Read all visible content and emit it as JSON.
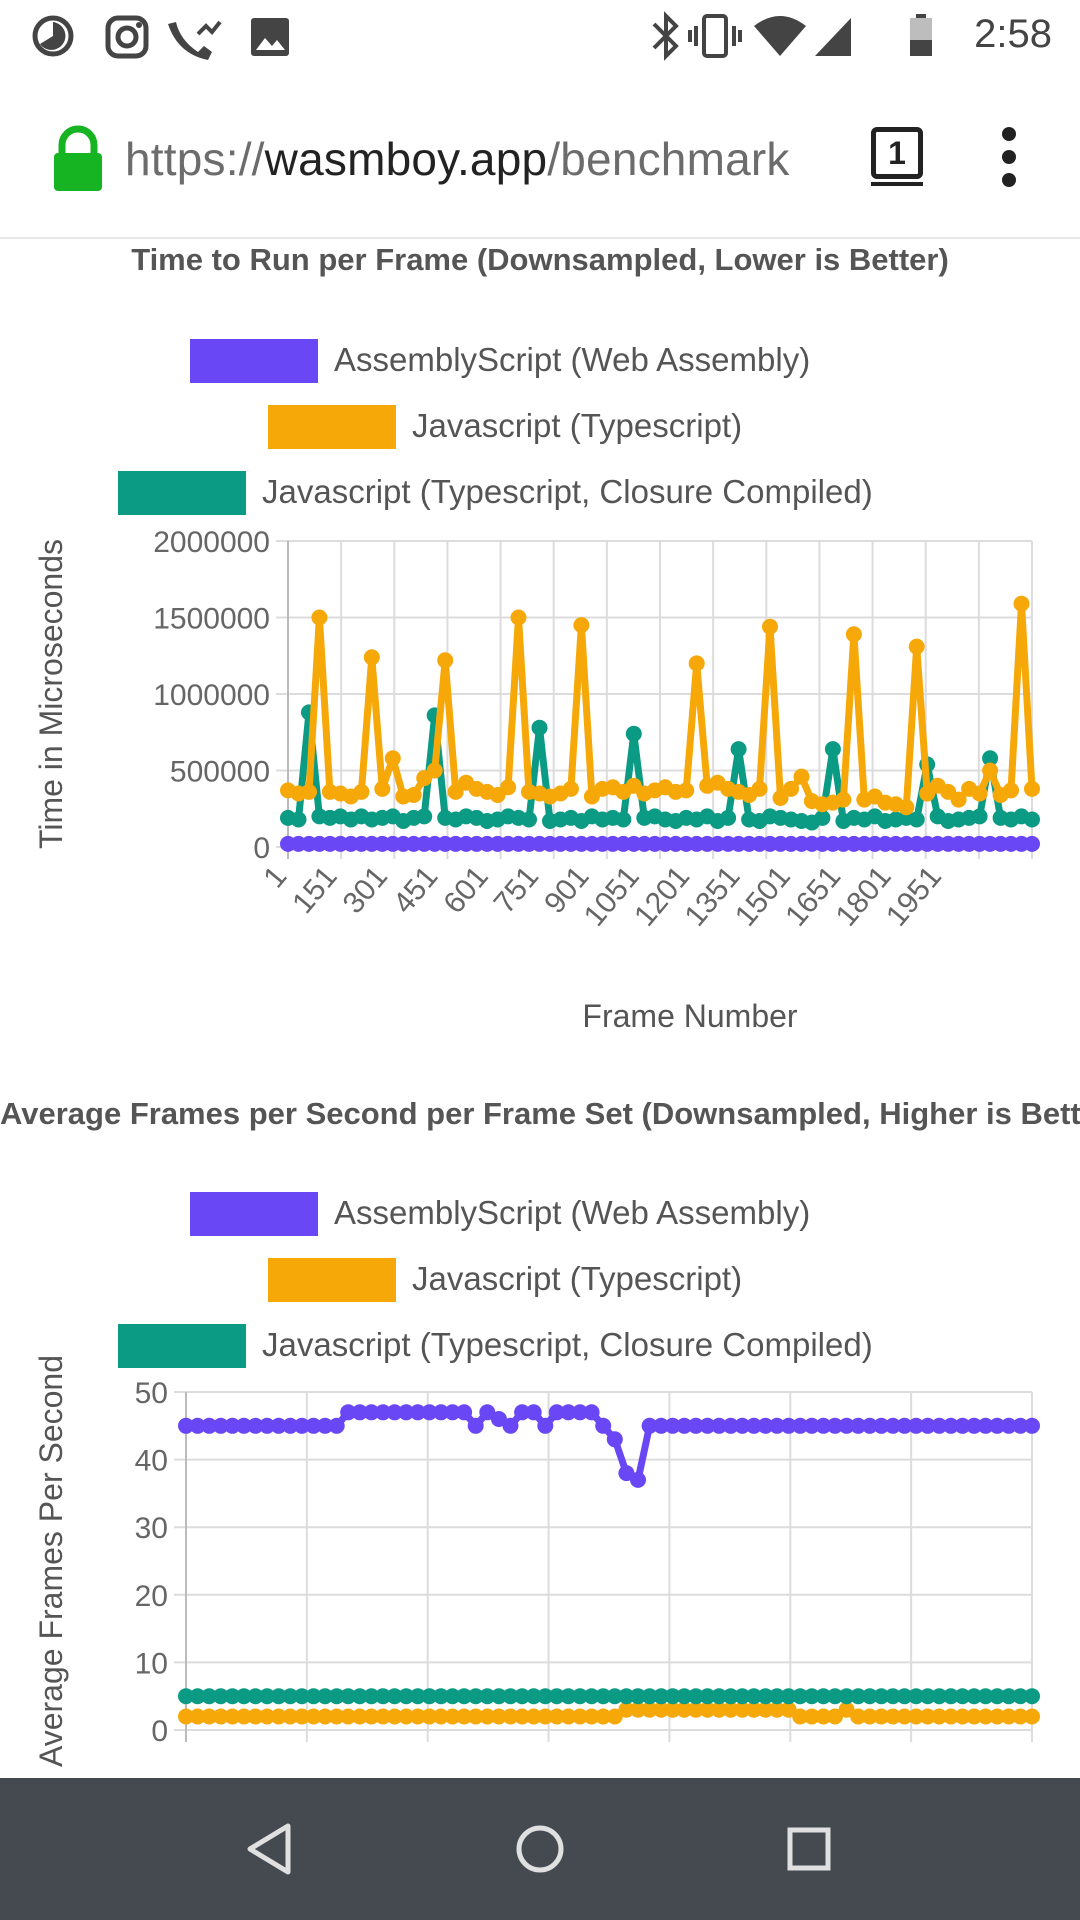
{
  "status_bar": {
    "time": "2:58",
    "left_icons": [
      "data-saver-icon",
      "instagram-icon",
      "missed-call-icon",
      "gallery-icon"
    ],
    "right_icons": [
      "bluetooth-icon",
      "vibrate-icon",
      "wifi-icon",
      "signal-icon",
      "battery-icon"
    ]
  },
  "browser": {
    "url_scheme": "https://",
    "url_host": "wasmboy.app",
    "url_path": "/benchmark",
    "tab_count": "1",
    "secure_icon": "lock-icon",
    "menu_icon": "more-vert-icon"
  },
  "colors": {
    "assemblyscript": "#6a47f5",
    "typescript": "#f6a809",
    "closure": "#0b9a84",
    "grid": "#dcdcdc"
  },
  "chart_data": [
    {
      "type": "line",
      "title": "Time to Run per Frame (Downsampled, Lower is Better)",
      "xlabel": "Frame Number",
      "ylabel": "Time in Microseconds",
      "ylim": [
        0,
        2000000
      ],
      "yticks": [
        "2000000",
        "1500000",
        "1000000",
        "500000",
        "0"
      ],
      "xticks": [
        "1",
        "151",
        "301",
        "451",
        "601",
        "751",
        "901",
        "1051",
        "1201",
        "1351",
        "1501",
        "1651",
        "1801",
        "1951"
      ],
      "legend": [
        "AssemblyScript (Web Assembly)",
        "Javascript (Typescript)",
        "Javascript (Typescript, Closure Compiled)"
      ],
      "series": [
        {
          "name": "AssemblyScript (Web Assembly)",
          "values": [
            20000,
            20000,
            20000,
            20000,
            20000,
            20000,
            20000,
            20000,
            20000,
            20000,
            20000,
            20000,
            20000,
            20000,
            20000,
            20000,
            20000,
            20000,
            20000,
            20000,
            20000,
            20000,
            20000,
            20000,
            20000,
            20000,
            20000,
            20000,
            20000,
            20000,
            20000,
            20000,
            20000,
            20000,
            20000,
            20000,
            20000,
            20000,
            20000,
            20000,
            20000,
            20000,
            20000,
            20000,
            20000,
            20000,
            20000,
            20000,
            20000,
            20000,
            20000,
            20000,
            20000,
            20000,
            20000,
            20000,
            20000,
            20000,
            20000,
            20000,
            20000,
            20000,
            20000,
            20000,
            20000,
            20000,
            20000,
            20000,
            20000,
            20000,
            20000,
            20000
          ]
        },
        {
          "name": "Javascript (Typescript)",
          "values": [
            370000,
            350000,
            360000,
            1500000,
            360000,
            350000,
            330000,
            360000,
            1240000,
            380000,
            580000,
            330000,
            340000,
            450000,
            500000,
            1220000,
            360000,
            420000,
            380000,
            360000,
            340000,
            390000,
            1500000,
            360000,
            350000,
            330000,
            350000,
            380000,
            1450000,
            330000,
            380000,
            390000,
            360000,
            400000,
            350000,
            370000,
            390000,
            360000,
            370000,
            1200000,
            400000,
            420000,
            380000,
            360000,
            340000,
            380000,
            1440000,
            320000,
            380000,
            460000,
            300000,
            280000,
            290000,
            310000,
            1390000,
            310000,
            330000,
            290000,
            280000,
            260000,
            1310000,
            350000,
            400000,
            360000,
            310000,
            380000,
            350000,
            500000,
            340000,
            370000,
            1590000,
            380000
          ]
        },
        {
          "name": "Javascript (Typescript, Closure Compiled)",
          "values": [
            190000,
            180000,
            880000,
            200000,
            190000,
            200000,
            180000,
            200000,
            180000,
            190000,
            200000,
            170000,
            190000,
            200000,
            860000,
            190000,
            180000,
            200000,
            190000,
            170000,
            180000,
            200000,
            190000,
            180000,
            780000,
            170000,
            180000,
            190000,
            170000,
            200000,
            180000,
            190000,
            180000,
            740000,
            190000,
            200000,
            180000,
            170000,
            190000,
            180000,
            200000,
            170000,
            190000,
            640000,
            180000,
            170000,
            200000,
            190000,
            180000,
            170000,
            160000,
            190000,
            640000,
            170000,
            190000,
            180000,
            200000,
            170000,
            180000,
            190000,
            180000,
            540000,
            200000,
            170000,
            180000,
            190000,
            200000,
            580000,
            190000,
            180000,
            200000,
            180000
          ]
        }
      ]
    },
    {
      "type": "line",
      "title": "Average Frames per Second per Frame Set (Downsampled, Higher is Better)",
      "ylabel": "Average Frames Per Second",
      "ylim": [
        0,
        50
      ],
      "yticks": [
        "50",
        "40",
        "30",
        "20",
        "10",
        "0"
      ],
      "legend": [
        "AssemblyScript (Web Assembly)",
        "Javascript (Typescript)",
        "Javascript (Typescript, Closure Compiled)"
      ],
      "series": [
        {
          "name": "AssemblyScript (Web Assembly)",
          "values": [
            45,
            45,
            45,
            45,
            45,
            45,
            45,
            45,
            45,
            45,
            45,
            45,
            45,
            45,
            47,
            47,
            47,
            47,
            47,
            47,
            47,
            47,
            47,
            47,
            47,
            45,
            47,
            46,
            45,
            47,
            47,
            45,
            47,
            47,
            47,
            47,
            45,
            43,
            38,
            37,
            45,
            45,
            45,
            45,
            45,
            45,
            45,
            45,
            45,
            45,
            45,
            45,
            45,
            45,
            45,
            45,
            45,
            45,
            45,
            45,
            45,
            45,
            45,
            45,
            45,
            45,
            45,
            45,
            45,
            45,
            45,
            45,
            45,
            45
          ]
        },
        {
          "name": "Javascript (Typescript)",
          "values": [
            2,
            2,
            2,
            2,
            2,
            2,
            2,
            2,
            2,
            2,
            2,
            2,
            2,
            2,
            2,
            2,
            2,
            2,
            2,
            2,
            2,
            2,
            2,
            2,
            2,
            2,
            2,
            2,
            2,
            2,
            2,
            2,
            2,
            2,
            2,
            2,
            2,
            2,
            3,
            3,
            3,
            3,
            3,
            3,
            3,
            3,
            3,
            3,
            3,
            3,
            3,
            3,
            3,
            2,
            2,
            2,
            2,
            3,
            2,
            2,
            2,
            2,
            2,
            2,
            2,
            2,
            2,
            2,
            2,
            2,
            2,
            2,
            2,
            2
          ]
        },
        {
          "name": "Javascript (Typescript, Closure Compiled)",
          "values": [
            5,
            5,
            5,
            5,
            5,
            5,
            5,
            5,
            5,
            5,
            5,
            5,
            5,
            5,
            5,
            5,
            5,
            5,
            5,
            5,
            5,
            5,
            5,
            5,
            5,
            5,
            5,
            5,
            5,
            5,
            5,
            5,
            5,
            5,
            5,
            5,
            5,
            5,
            5,
            5,
            5,
            5,
            5,
            5,
            5,
            5,
            5,
            5,
            5,
            5,
            5,
            5,
            5,
            5,
            5,
            5,
            5,
            5,
            5,
            5,
            5,
            5,
            5,
            5,
            5,
            5,
            5,
            5,
            5,
            5,
            5,
            5,
            5,
            5
          ]
        }
      ]
    }
  ],
  "nav_bar": {
    "icons": [
      "back-icon",
      "home-icon",
      "recents-icon"
    ]
  }
}
